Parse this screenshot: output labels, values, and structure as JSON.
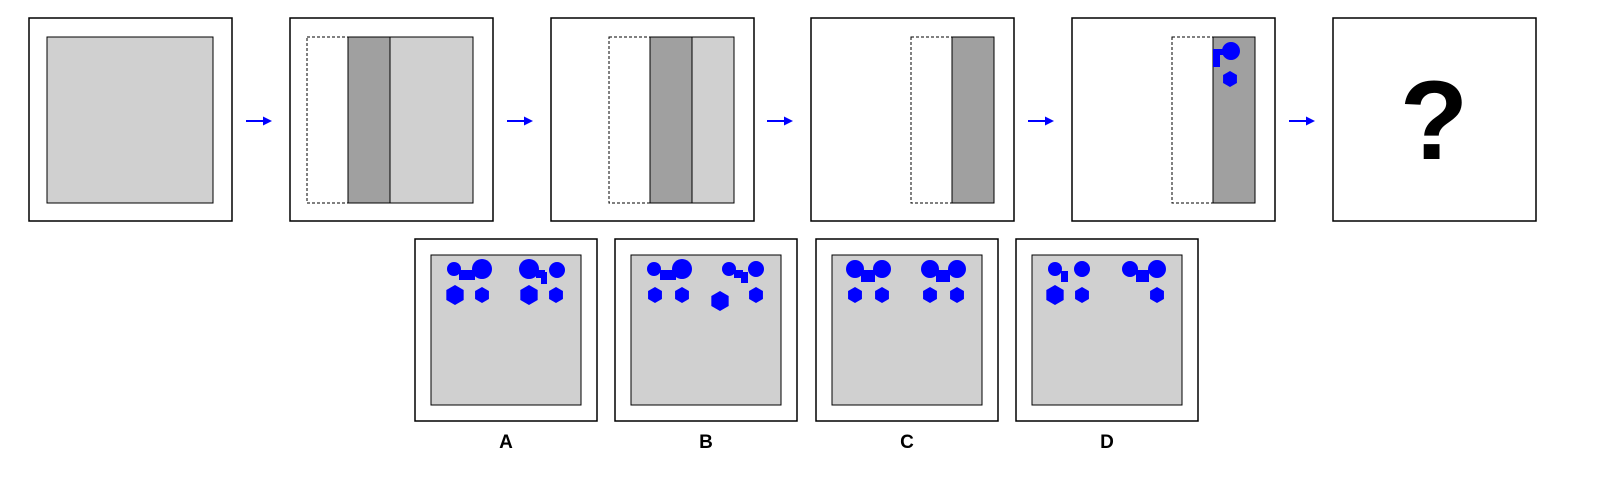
{
  "colors": {
    "fill": "#d0d0d0",
    "dark_strip": "#a0a0a0",
    "shape": "#0000ff",
    "arrow": "#0000ff",
    "frame": "#000000",
    "background": "#ffffff"
  },
  "sequence": {
    "question_mark": "?",
    "panels": [
      {
        "name": "step-1",
        "content": "full-square"
      },
      {
        "name": "step-2",
        "content": "white-dark-light-strips"
      },
      {
        "name": "step-3",
        "content": "white-dark-light-strips-narrower"
      },
      {
        "name": "step-4",
        "content": "white-dark-strips"
      },
      {
        "name": "step-5",
        "content": "white-dark-strip-with-blue-shapes"
      },
      {
        "name": "step-6",
        "content": "question-mark"
      }
    ]
  },
  "options": [
    {
      "label": "A"
    },
    {
      "label": "B"
    },
    {
      "label": "C"
    },
    {
      "label": "D"
    }
  ]
}
